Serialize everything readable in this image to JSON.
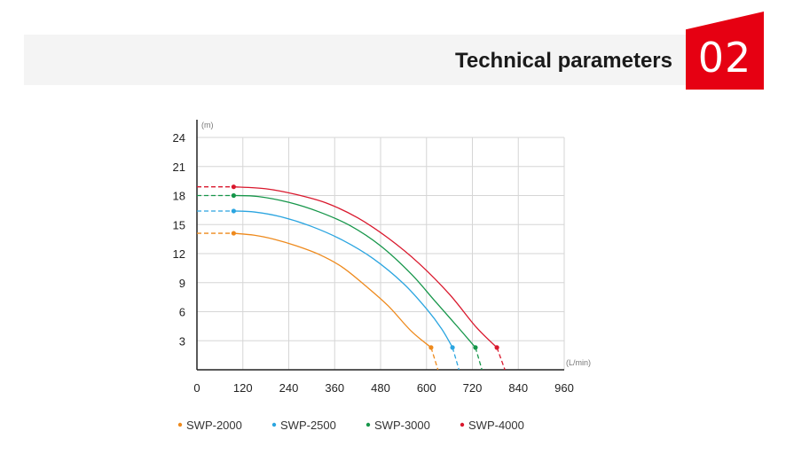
{
  "header": {
    "title": "Technical parameters",
    "section_number": "02",
    "accent_color": "#e60012"
  },
  "chart_data": {
    "type": "line",
    "title": "",
    "xlabel": "",
    "ylabel": "",
    "x_unit": "(L/min)",
    "y_unit": "(m)",
    "xlim": [
      0,
      960
    ],
    "ylim": [
      0,
      24
    ],
    "x_ticks": [
      "0",
      "120",
      "240",
      "360",
      "480",
      "600",
      "720",
      "840",
      "960"
    ],
    "y_ticks": [
      "3",
      "6",
      "9",
      "12",
      "15",
      "18",
      "21",
      "24"
    ],
    "grid": true,
    "legend_position": "bottom",
    "series": [
      {
        "name": "SWP-2000",
        "color": "#ee8a1d",
        "shutoff_head": 14.1,
        "dash_start": [
          0,
          14.1
        ],
        "points": [
          [
            96,
            14.1
          ],
          [
            150,
            13.9
          ],
          [
            200,
            13.5
          ],
          [
            260,
            12.8
          ],
          [
            320,
            11.9
          ],
          [
            380,
            10.6
          ],
          [
            440,
            8.7
          ],
          [
            500,
            6.6
          ],
          [
            560,
            4.0
          ],
          [
            612,
            2.3
          ]
        ],
        "dash_end": [
          630,
          0
        ]
      },
      {
        "name": "SWP-2500",
        "color": "#2ba5e0",
        "shutoff_head": 16.4,
        "dash_start": [
          0,
          16.4
        ],
        "points": [
          [
            96,
            16.4
          ],
          [
            150,
            16.3
          ],
          [
            220,
            15.8
          ],
          [
            300,
            14.8
          ],
          [
            380,
            13.4
          ],
          [
            460,
            11.5
          ],
          [
            540,
            8.9
          ],
          [
            600,
            6.3
          ],
          [
            640,
            4.2
          ],
          [
            668,
            2.3
          ]
        ],
        "dash_end": [
          685,
          0
        ]
      },
      {
        "name": "SWP-3000",
        "color": "#16964a",
        "shutoff_head": 18.0,
        "dash_start": [
          0,
          18.0
        ],
        "points": [
          [
            96,
            18.0
          ],
          [
            160,
            17.9
          ],
          [
            240,
            17.3
          ],
          [
            320,
            16.3
          ],
          [
            400,
            14.9
          ],
          [
            480,
            12.8
          ],
          [
            560,
            9.9
          ],
          [
            620,
            7.2
          ],
          [
            680,
            4.5
          ],
          [
            728,
            2.3
          ]
        ],
        "dash_end": [
          745,
          0
        ]
      },
      {
        "name": "SWP-4000",
        "color": "#d9182d",
        "shutoff_head": 18.9,
        "dash_start": [
          0,
          18.9
        ],
        "points": [
          [
            96,
            18.9
          ],
          [
            180,
            18.7
          ],
          [
            260,
            18.1
          ],
          [
            340,
            17.2
          ],
          [
            420,
            15.7
          ],
          [
            500,
            13.6
          ],
          [
            580,
            11.0
          ],
          [
            660,
            7.8
          ],
          [
            730,
            4.4
          ],
          [
            784,
            2.3
          ]
        ],
        "dash_end": [
          805,
          0
        ]
      }
    ]
  }
}
